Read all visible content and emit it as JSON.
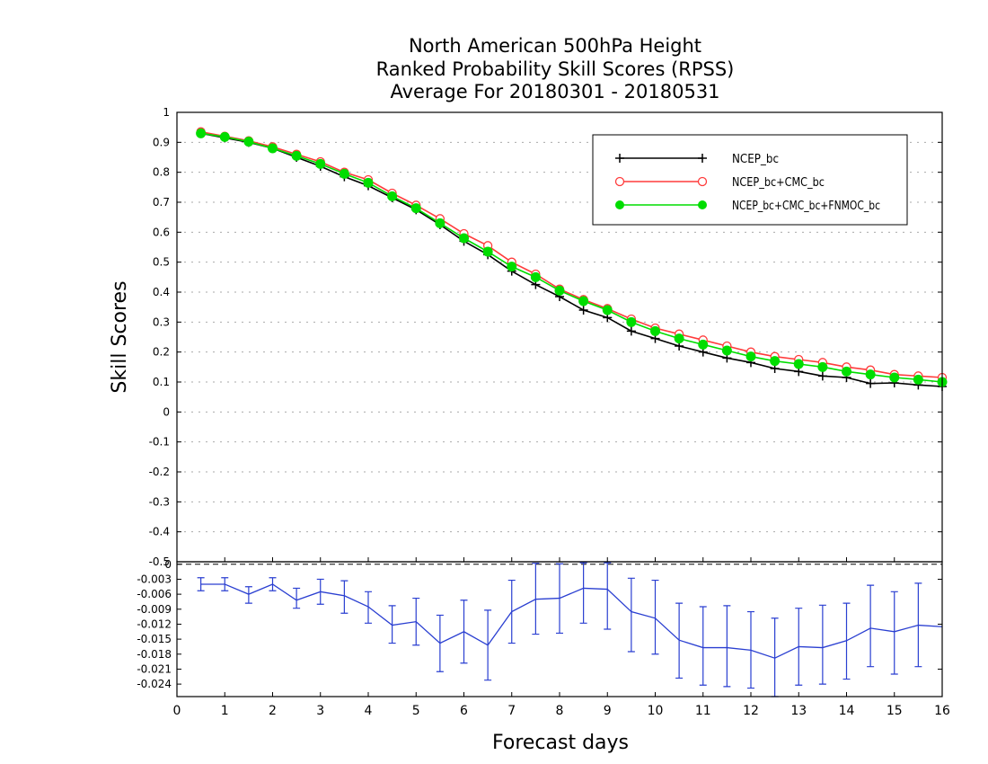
{
  "chart_data": [
    {
      "type": "line",
      "title": [
        "North American 500hPa Height",
        "Ranked Probability Skill Scores (RPSS)",
        "Average For 20180301 - 20180531"
      ],
      "ylabel": "Skill Scores",
      "xlim": [
        0,
        16
      ],
      "ylim": [
        -0.5,
        1
      ],
      "grid": true,
      "legend_position": "top-right",
      "x": [
        0.5,
        1,
        1.5,
        2,
        2.5,
        3,
        3.5,
        4,
        4.5,
        5,
        5.5,
        6,
        6.5,
        7,
        7.5,
        8,
        8.5,
        9,
        9.5,
        10,
        10.5,
        11,
        11.5,
        12,
        12.5,
        13,
        13.5,
        14,
        14.5,
        15,
        15.5,
        16
      ],
      "y_ticks": [
        "1",
        "0.9",
        "0.8",
        "0.7",
        "0.6",
        "0.5",
        "0.4",
        "0.3",
        "0.2",
        "0.1",
        "0",
        "-0.1",
        "-0.2",
        "-0.3",
        "-0.4",
        "-0.5"
      ],
      "series": [
        {
          "name": "NCEP_bc",
          "color": "#000000",
          "marker": "plus",
          "values": [
            0.93,
            0.915,
            0.9,
            0.88,
            0.85,
            0.82,
            0.785,
            0.755,
            0.715,
            0.675,
            0.625,
            0.57,
            0.525,
            0.47,
            0.425,
            0.385,
            0.34,
            0.315,
            0.27,
            0.245,
            0.22,
            0.2,
            0.18,
            0.165,
            0.145,
            0.135,
            0.12,
            0.115,
            0.095,
            0.097,
            0.09,
            0.085
          ]
        },
        {
          "name": "NCEP_bc+CMC_bc",
          "color": "#ff3b3b",
          "marker": "open-circle",
          "values": [
            0.935,
            0.92,
            0.905,
            0.885,
            0.86,
            0.835,
            0.8,
            0.775,
            0.73,
            0.69,
            0.645,
            0.595,
            0.555,
            0.5,
            0.46,
            0.41,
            0.375,
            0.345,
            0.31,
            0.28,
            0.26,
            0.24,
            0.22,
            0.2,
            0.185,
            0.175,
            0.165,
            0.15,
            0.14,
            0.125,
            0.12,
            0.115
          ]
        },
        {
          "name": "NCEP_bc+CMC_bc+FNMOC_bc",
          "color": "#00dd00",
          "marker": "filled-circle",
          "values": [
            0.93,
            0.918,
            0.902,
            0.88,
            0.855,
            0.828,
            0.795,
            0.765,
            0.72,
            0.68,
            0.63,
            0.58,
            0.535,
            0.485,
            0.45,
            0.405,
            0.37,
            0.34,
            0.3,
            0.27,
            0.245,
            0.225,
            0.205,
            0.185,
            0.17,
            0.16,
            0.15,
            0.135,
            0.125,
            0.115,
            0.108,
            0.1
          ]
        }
      ]
    },
    {
      "type": "line",
      "xlabel": "Forecast days",
      "xlim": [
        0,
        16
      ],
      "ylim": [
        -0.0265,
        0.0005
      ],
      "x_ticks": [
        "0",
        "1",
        "2",
        "3",
        "4",
        "5",
        "6",
        "7",
        "8",
        "9",
        "10",
        "11",
        "12",
        "13",
        "14",
        "15",
        "16"
      ],
      "y_ticks": [
        "0",
        "-0.003",
        "-0.006",
        "-0.009",
        "-0.012",
        "-0.015",
        "-0.018",
        "-0.021",
        "-0.024"
      ],
      "y_tick_values": [
        0,
        -0.003,
        -0.006,
        -0.009,
        -0.012,
        -0.015,
        -0.018,
        -0.021,
        -0.024
      ],
      "zero_line": true,
      "color": "#2a3fd1",
      "x": [
        0.5,
        1,
        1.5,
        2,
        2.5,
        3,
        3.5,
        4,
        4.5,
        5,
        5.5,
        6,
        6.5,
        7,
        7.5,
        8,
        8.5,
        9,
        9.5,
        10,
        10.5,
        11,
        11.5,
        12,
        12.5,
        13,
        13.5,
        14,
        14.5,
        15,
        15.5,
        16
      ],
      "values": [
        -0.004,
        -0.004,
        -0.006,
        -0.004,
        -0.0072,
        -0.0055,
        -0.0063,
        -0.0085,
        -0.0122,
        -0.0115,
        -0.0158,
        -0.0135,
        -0.0162,
        -0.0095,
        -0.007,
        -0.0068,
        -0.0048,
        -0.005,
        -0.0095,
        -0.0108,
        -0.0152,
        -0.0167,
        -0.0167,
        -0.0172,
        -0.0188,
        -0.0165,
        -0.0167,
        -0.0153,
        -0.0128,
        -0.0135,
        -0.0122,
        -0.0125
      ],
      "err_low": [
        -0.0053,
        -0.0053,
        -0.0078,
        -0.0053,
        -0.0088,
        -0.008,
        -0.0098,
        -0.0118,
        -0.0158,
        -0.0162,
        -0.0215,
        -0.0198,
        -0.0232,
        -0.0158,
        -0.014,
        -0.0138,
        -0.0118,
        -0.013,
        -0.0175,
        -0.018,
        -0.0228,
        -0.0242,
        -0.0245,
        -0.0248,
        -0.0265,
        -0.0242,
        -0.024,
        -0.023,
        -0.0205,
        -0.022,
        -0.0205,
        null
      ],
      "err_high": [
        -0.0027,
        -0.0027,
        -0.0045,
        -0.0027,
        -0.0048,
        -0.003,
        -0.0033,
        -0.0055,
        -0.0083,
        -0.0068,
        -0.0102,
        -0.0072,
        -0.0092,
        -0.0032,
        0.0002,
        0.0001,
        0.0003,
        0.0003,
        -0.0028,
        -0.0032,
        -0.0078,
        -0.0085,
        -0.0083,
        -0.0095,
        -0.0108,
        -0.0088,
        -0.0082,
        -0.0078,
        -0.0042,
        -0.0055,
        -0.0038,
        null
      ]
    }
  ]
}
